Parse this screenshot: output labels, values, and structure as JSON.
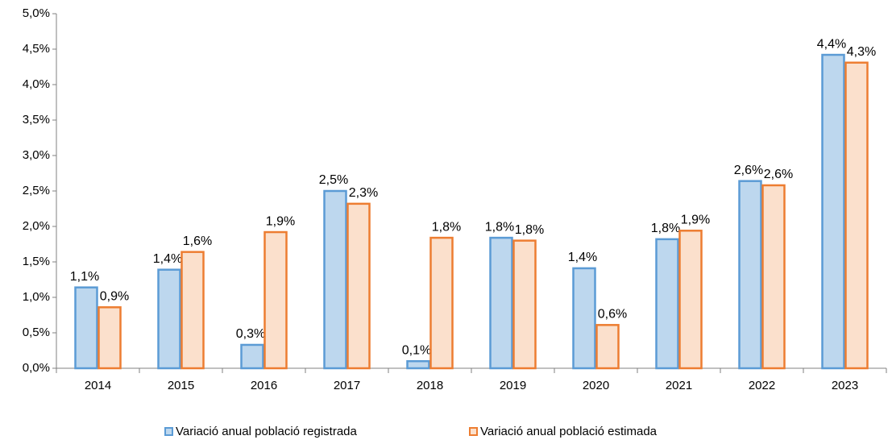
{
  "chart_data": {
    "type": "bar",
    "categories": [
      "2014",
      "2015",
      "2016",
      "2017",
      "2018",
      "2019",
      "2020",
      "2021",
      "2022",
      "2023"
    ],
    "series": [
      {
        "name": "Variació anual població registrada",
        "color": "#bdd7ee",
        "edgecolor": "#5b9bd5",
        "values": [
          1.14,
          1.39,
          0.33,
          2.5,
          0.1,
          1.84,
          1.41,
          1.82,
          2.64,
          4.42
        ],
        "value_labels": [
          "1,1%",
          "1,4%",
          "0,3%",
          "2,5%",
          "0,1%",
          "1,8%",
          "1,4%",
          "1,8%",
          "2,6%",
          "4,4%"
        ]
      },
      {
        "name": "Variació anual població estimada",
        "color": "#fbe0cc",
        "edgecolor": "#ed7d31",
        "values": [
          0.86,
          1.64,
          1.92,
          2.32,
          1.84,
          1.8,
          0.61,
          1.94,
          2.58,
          4.31
        ],
        "value_labels": [
          "0,9%",
          "1,6%",
          "1,9%",
          "2,3%",
          "1,8%",
          "1,8%",
          "0,6%",
          "1,9%",
          "2,6%",
          "4,3%"
        ]
      }
    ],
    "ylim": [
      0,
      5
    ],
    "yticks": [
      {
        "value": 0,
        "label": "0,0%"
      },
      {
        "value": 0.5,
        "label": "0,5%"
      },
      {
        "value": 1,
        "label": "1,0%"
      },
      {
        "value": 1.5,
        "label": "1,5%"
      },
      {
        "value": 2,
        "label": "2,0%"
      },
      {
        "value": 2.5,
        "label": "2,5%"
      },
      {
        "value": 3,
        "label": "3,0%"
      },
      {
        "value": 3.5,
        "label": "3,5%"
      },
      {
        "value": 4,
        "label": "4,0%"
      },
      {
        "value": 4.5,
        "label": "4,5%"
      },
      {
        "value": 5,
        "label": "5,0%"
      }
    ],
    "legend": "bottom"
  }
}
